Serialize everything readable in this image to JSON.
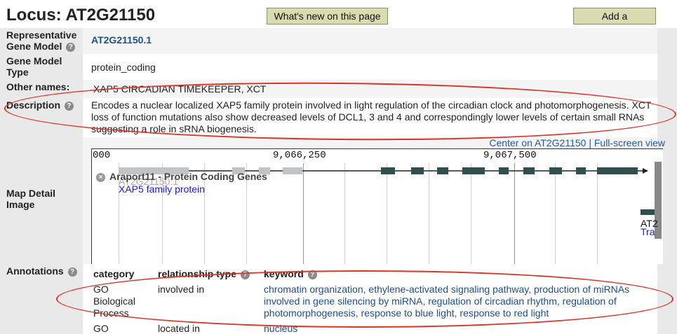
{
  "header": {
    "title": "Locus: AT2G21150",
    "whats_new_button": "What's new on this page",
    "add_comment_button": "Add a Comment"
  },
  "rows": {
    "rep_gene_model": {
      "label": "Representative Gene Model",
      "value": "AT2G21150.1"
    },
    "gene_model_type": {
      "label": "Gene Model Type",
      "value": "protein_coding"
    },
    "other_names": {
      "label": "Other names:",
      "value": "XAP5 CIRCADIAN TIMEKEEPER, XCT"
    },
    "description": {
      "label": "Description",
      "value": "Encodes a nuclear localized XAP5 family protein involved in light regulation of the circadian clock and photomorphogenesis. XCT loss of function mutations also show decreased levels of DCL1, 3 and 4 and correspondingly lower levels of certain small RNAs suggesting a role in sRNA biogenesis."
    }
  },
  "map": {
    "label": "Map Detail Image",
    "center_link": "Center on AT2G21150",
    "separator": "|",
    "fullscreen_link": "Full-screen view",
    "ruler": [
      "000",
      "9,066,250",
      "9,067,500"
    ],
    "track_title": "Araport11 - Protein Coding Genes",
    "transcript_label": "AT2G21150.1",
    "gene_desc": "XAP5 family protein",
    "right_label_1": "AT2",
    "right_label_2": "Tra",
    "colors": {
      "exon": "#2f4f4f",
      "utr": "#c0c4c8",
      "highlight": "#e07070"
    }
  },
  "annotations": {
    "label": "Annotations",
    "headers": {
      "category": "category",
      "relationship": "relationship type",
      "keyword": "keyword"
    },
    "rows": [
      {
        "category": "GO Biological Process",
        "relationship": "involved in",
        "keywords": "chromatin organization, ethylene-activated signaling pathway, production of miRNAs involved in gene silencing by miRNA, regulation of circadian rhythm, regulation of photomorphogenesis, response to blue light, response to red light"
      },
      {
        "category": "GO",
        "relationship": "located in",
        "keywords": "nucleus"
      }
    ]
  },
  "help_glyph": "?",
  "close_glyph": "×"
}
